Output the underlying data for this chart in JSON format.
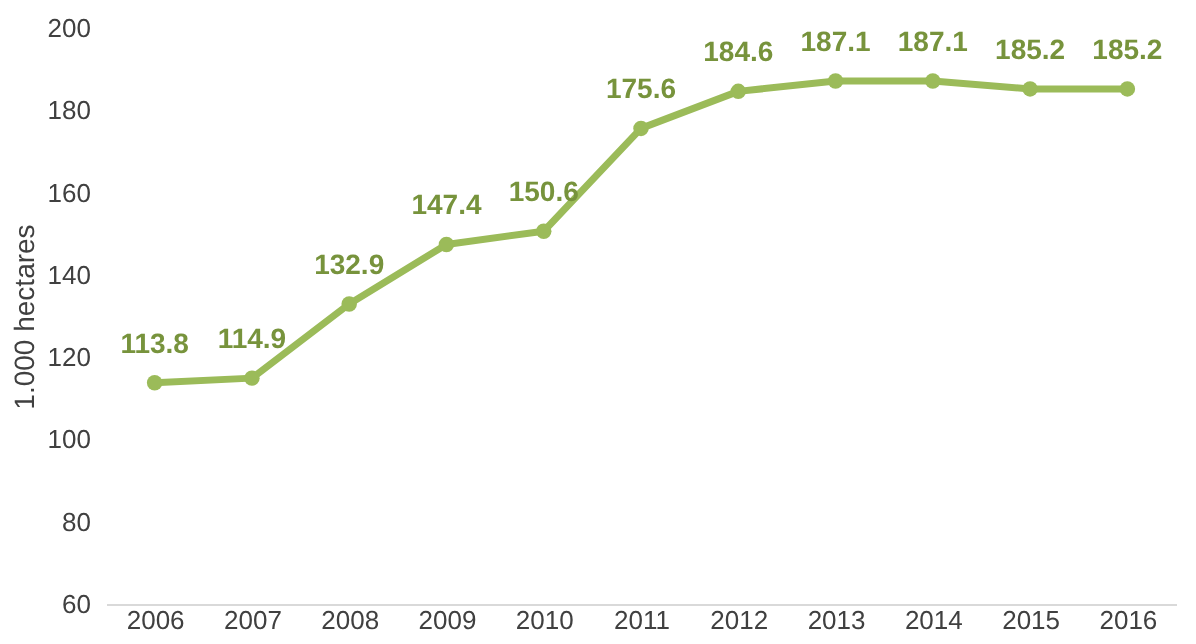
{
  "chart_data": {
    "type": "line",
    "ylabel": "1.000 hectares",
    "categories": [
      "2006",
      "2007",
      "2008",
      "2009",
      "2010",
      "2011",
      "2012",
      "2013",
      "2014",
      "2015",
      "2016"
    ],
    "series": [
      {
        "color": "#9bbb59",
        "values": [
          113.8,
          114.9,
          132.9,
          147.4,
          150.6,
          175.6,
          184.6,
          187.1,
          187.1,
          185.2,
          185.2
        ]
      }
    ],
    "ylim": [
      60,
      200
    ],
    "yticks": [
      60,
      80,
      100,
      120,
      140,
      160,
      180,
      200
    ],
    "grid": false,
    "marker": "circle",
    "line_style": "solid",
    "data_labels": true
  }
}
